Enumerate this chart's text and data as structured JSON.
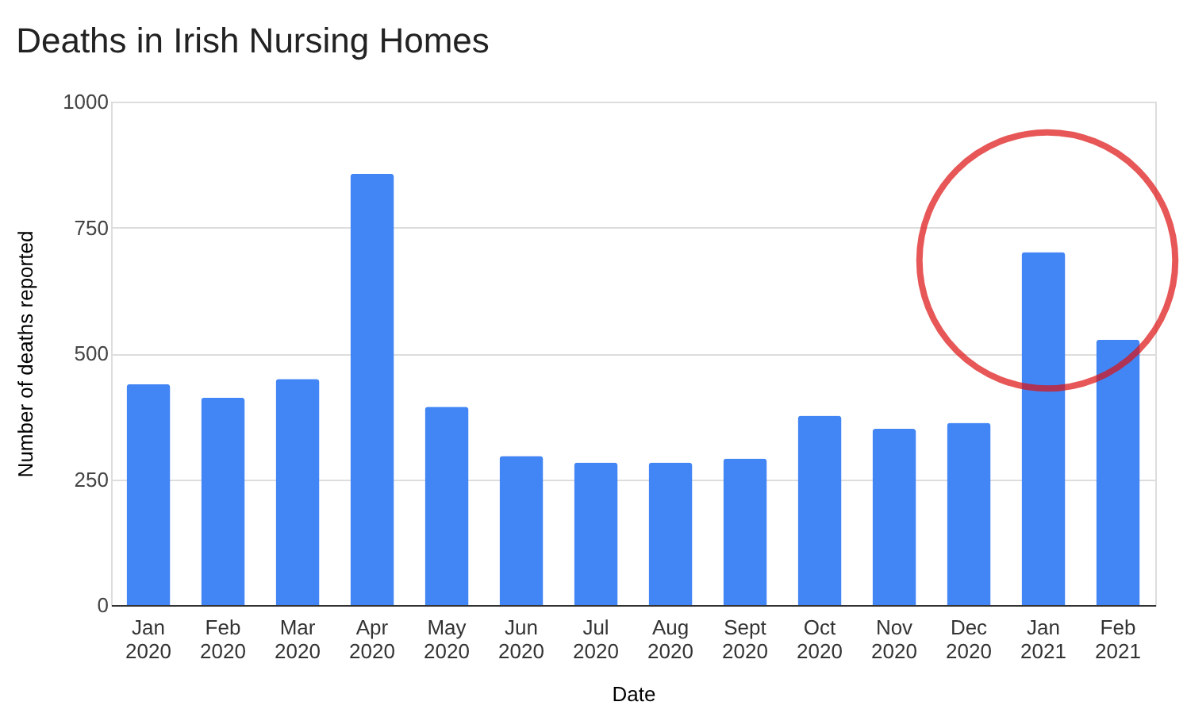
{
  "chart_data": {
    "type": "bar",
    "title": "Deaths in Irish Nursing Homes",
    "xlabel": "Date",
    "ylabel": "Number of deaths reported",
    "categories": [
      "Jan 2020",
      "Feb 2020",
      "Mar 2020",
      "Apr 2020",
      "May 2020",
      "Jun 2020",
      "Jul 2020",
      "Aug 2020",
      "Sept 2020",
      "Oct 2020",
      "Nov 2020",
      "Dec 2020",
      "Jan 2021",
      "Feb 2021"
    ],
    "values": [
      439,
      412,
      449,
      857,
      394,
      296,
      283,
      283,
      291,
      376,
      350,
      362,
      701,
      527
    ],
    "color": "#4285f4",
    "ylim": [
      0,
      1000
    ],
    "yticks": [
      0,
      250,
      500,
      750,
      1000
    ],
    "grid": "y"
  }
}
